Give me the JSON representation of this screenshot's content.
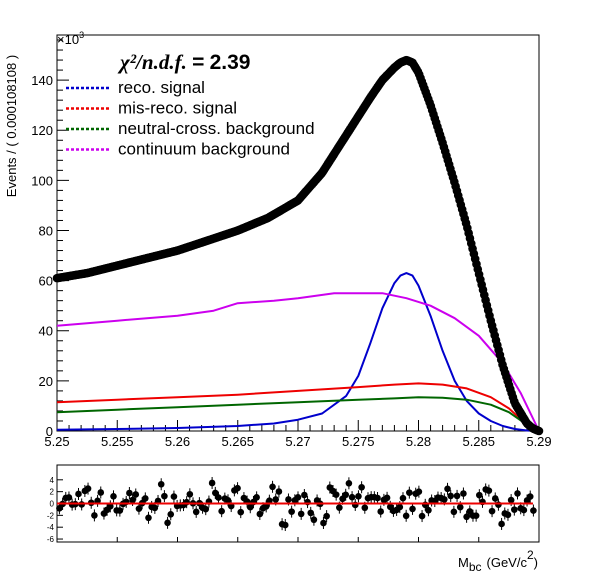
{
  "chart_data": {
    "type": "line",
    "stat_symbol": "χ²/n.d.f.",
    "stat_eq": "=",
    "stat_value": "2.39",
    "xlabel_main": "M",
    "xlabel_sub": "bc",
    "xlabel_unit": "(GeV/c",
    "xlabel_sup": "2",
    "xlabel_close": ")",
    "ylabel": "Events / ( 0.000108108 )",
    "y_multiplier": "×10",
    "y_multiplier_exp": "3",
    "xlim": [
      5.25,
      5.29
    ],
    "ylim": [
      0,
      158
    ],
    "x_ticks": [
      5.25,
      5.255,
      5.26,
      5.265,
      5.27,
      5.275,
      5.28,
      5.285,
      5.29
    ],
    "x_tick_labels": [
      "5.25",
      "5.255",
      "5.26",
      "5.265",
      "5.27",
      "5.275",
      "5.28",
      "5.285",
      "5.29"
    ],
    "y_ticks": [
      0,
      20,
      40,
      60,
      80,
      100,
      120,
      140
    ],
    "y_tick_labels": [
      "0",
      "20",
      "40",
      "60",
      "80",
      "100",
      "120",
      "140"
    ],
    "series": [
      {
        "name": "data",
        "color": "#000000",
        "style": "points",
        "x": [
          5.25,
          5.2525,
          5.255,
          5.2575,
          5.26,
          5.2625,
          5.265,
          5.2675,
          5.27,
          5.272,
          5.274,
          5.276,
          5.277,
          5.278,
          5.2785,
          5.279,
          5.2795,
          5.28,
          5.281,
          5.282,
          5.283,
          5.284,
          5.285,
          5.286,
          5.287,
          5.288,
          5.289,
          5.2895,
          5.29
        ],
        "y": [
          61,
          63,
          66,
          69,
          72,
          76,
          80,
          85,
          92,
          103,
          118,
          133,
          140,
          145,
          147,
          148,
          147,
          143,
          130,
          115,
          99,
          82,
          63,
          44,
          26,
          11,
          3,
          1,
          0
        ]
      },
      {
        "name": "reco. signal",
        "color": "#0000cc",
        "style": "dashed",
        "x": [
          5.25,
          5.255,
          5.26,
          5.265,
          5.268,
          5.27,
          5.272,
          5.274,
          5.275,
          5.276,
          5.277,
          5.278,
          5.2785,
          5.279,
          5.2795,
          5.28,
          5.281,
          5.282,
          5.283,
          5.284,
          5.285,
          5.286,
          5.287,
          5.288,
          5.289,
          5.29
        ],
        "y": [
          0.5,
          0.8,
          1.2,
          2,
          3,
          4.5,
          7,
          14,
          22,
          35,
          49,
          59,
          62,
          63,
          62,
          58,
          46,
          32,
          20,
          12,
          7,
          4,
          2,
          0.8,
          0.2,
          0
        ]
      },
      {
        "name": "mis-reco. signal",
        "color": "#ee0000",
        "style": "dashed",
        "x": [
          5.25,
          5.255,
          5.26,
          5.265,
          5.27,
          5.275,
          5.278,
          5.28,
          5.282,
          5.284,
          5.286,
          5.2875,
          5.289,
          5.29
        ],
        "y": [
          11.5,
          12.5,
          13.5,
          14.5,
          16,
          17.5,
          18.5,
          19,
          18.5,
          17,
          13.5,
          9,
          2.5,
          0
        ]
      },
      {
        "name": "neutral-cross. background",
        "color": "#006600",
        "style": "dashed",
        "x": [
          5.25,
          5.255,
          5.26,
          5.265,
          5.27,
          5.275,
          5.278,
          5.28,
          5.282,
          5.284,
          5.286,
          5.2875,
          5.289,
          5.29
        ],
        "y": [
          7.5,
          8.5,
          9.5,
          10.5,
          11.5,
          12.5,
          13,
          13.5,
          13.3,
          12.5,
          10.5,
          7.5,
          2.5,
          0
        ]
      },
      {
        "name": "continuum background",
        "color": "#cc00ee",
        "style": "dashed",
        "x": [
          5.25,
          5.255,
          5.26,
          5.263,
          5.265,
          5.268,
          5.27,
          5.273,
          5.275,
          5.277,
          5.279,
          5.281,
          5.283,
          5.285,
          5.287,
          5.2885,
          5.2895,
          5.29
        ],
        "y": [
          42,
          44,
          46,
          48,
          51,
          52,
          53,
          55,
          55,
          55,
          53,
          50,
          45,
          38,
          27,
          15,
          5,
          0
        ]
      }
    ],
    "residual": {
      "ylim": [
        -6.5,
        6.5
      ],
      "y_ticks": [
        -6,
        -4,
        -2,
        0,
        2,
        4
      ],
      "y_tick_labels": [
        "-6",
        "-4",
        "-2",
        "0",
        "2",
        "4"
      ],
      "zero_line_color": "#ee0000"
    }
  }
}
